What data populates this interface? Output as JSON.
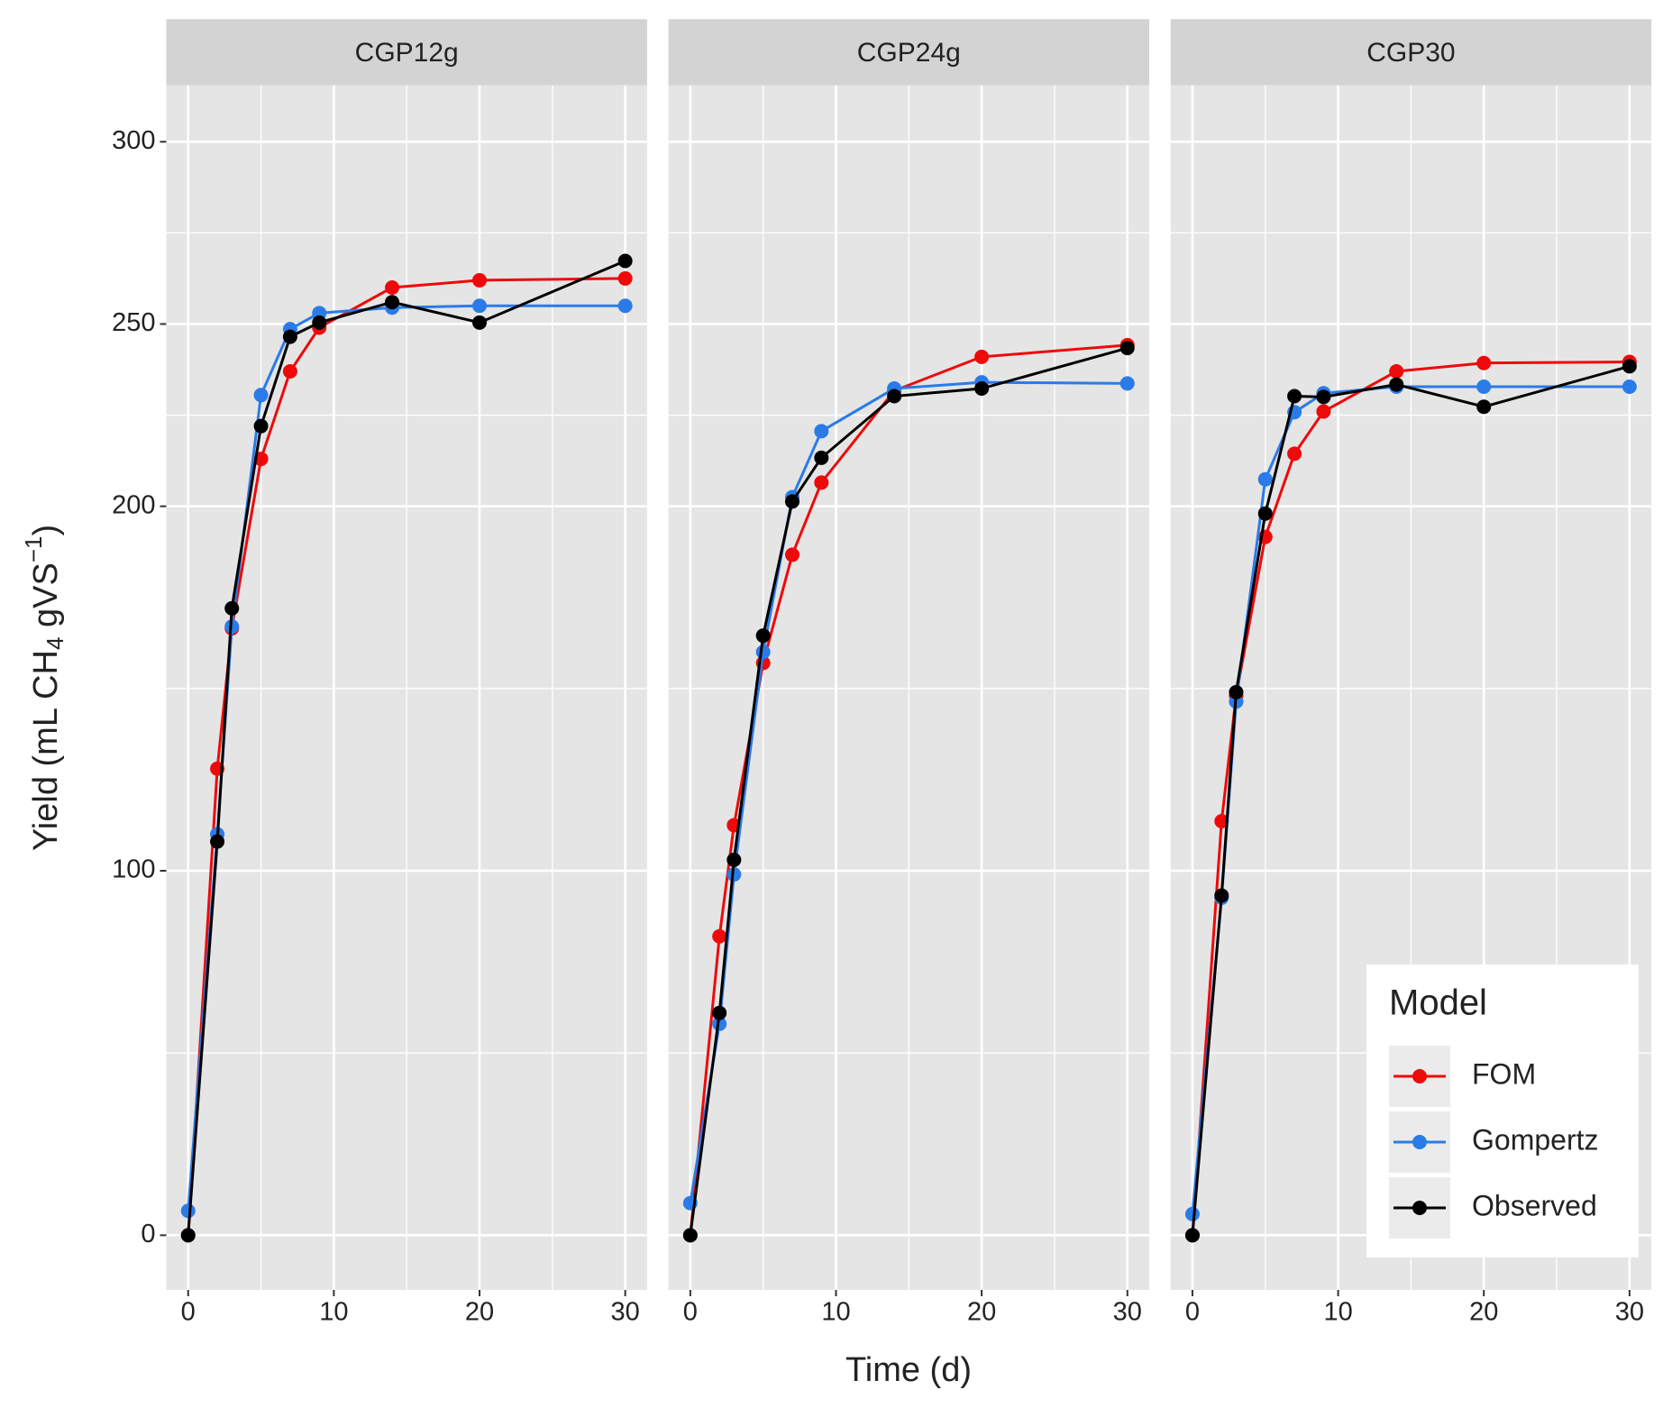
{
  "chart_data": [
    {
      "type": "line",
      "title": "CGP12g",
      "x": [
        0,
        2,
        3,
        5,
        7,
        9,
        14,
        20,
        30
      ],
      "series": [
        {
          "name": "FOM",
          "color": "#ee0a0a",
          "values": [
            0,
            128,
            166.5,
            213,
            237,
            249,
            260,
            262,
            262.5
          ]
        },
        {
          "name": "Gompertz",
          "color": "#2a7be8",
          "values": [
            6.7,
            110,
            167,
            230.5,
            248.6,
            253,
            254.5,
            255,
            255
          ]
        },
        {
          "name": "Observed",
          "color": "#000000",
          "values": [
            0,
            108,
            172,
            222,
            246.5,
            250.4,
            256,
            250.4,
            267.3
          ]
        }
      ],
      "xlim": [
        -1.5,
        31.5
      ],
      "ylim": [
        -15,
        315.5
      ],
      "xticks": [
        0,
        10,
        20,
        30
      ],
      "xminor": [
        5,
        15,
        25
      ],
      "yticks": [
        0,
        100,
        200,
        250,
        300
      ],
      "yminor": [
        50,
        150,
        225,
        275
      ]
    },
    {
      "type": "line",
      "title": "CGP24g",
      "x": [
        0,
        2,
        3,
        5,
        7,
        9,
        14,
        20,
        30
      ],
      "series": [
        {
          "name": "FOM",
          "color": "#ee0a0a",
          "values": [
            0,
            82,
            112.5,
            157,
            186.7,
            206.5,
            231.7,
            241,
            244.2
          ]
        },
        {
          "name": "Gompertz",
          "color": "#2a7be8",
          "values": [
            8.8,
            58,
            99,
            160,
            202.5,
            220.6,
            232.3,
            234,
            233.7
          ]
        },
        {
          "name": "Observed",
          "color": "#000000",
          "values": [
            0,
            61,
            103,
            164.5,
            201.3,
            213.3,
            230.2,
            232.3,
            243.4
          ]
        }
      ],
      "xlim": [
        -1.5,
        31.5
      ],
      "ylim": [
        -15,
        315.5
      ],
      "xticks": [
        0,
        10,
        20,
        30
      ],
      "xminor": [
        5,
        15,
        25
      ],
      "yticks": [
        0,
        100,
        200,
        250,
        300
      ],
      "yminor": [
        50,
        150,
        225,
        275
      ]
    },
    {
      "type": "line",
      "title": "CGP30",
      "x": [
        0,
        2,
        3,
        5,
        7,
        9,
        14,
        20,
        30
      ],
      "series": [
        {
          "name": "FOM",
          "color": "#ee0a0a",
          "values": [
            0,
            113.6,
            148,
            191.6,
            214.4,
            226,
            237,
            239.3,
            239.6
          ]
        },
        {
          "name": "Gompertz",
          "color": "#2a7be8",
          "values": [
            5.8,
            92.6,
            146.4,
            207.4,
            225.8,
            231,
            232.8,
            232.8,
            232.8
          ]
        },
        {
          "name": "Observed",
          "color": "#000000",
          "values": [
            0,
            93.2,
            149,
            198,
            230.2,
            230,
            233.4,
            227.3,
            238.4
          ]
        }
      ],
      "xlim": [
        -1.5,
        31.5
      ],
      "ylim": [
        -15,
        315.5
      ],
      "xticks": [
        0,
        10,
        20,
        30
      ],
      "xminor": [
        5,
        15,
        25
      ],
      "yticks": [
        0,
        100,
        200,
        250,
        300
      ],
      "yminor": [
        50,
        150,
        225,
        275
      ]
    }
  ],
  "x_label": "Time (d)",
  "y_label": [
    "Yield (mL CH",
    "4",
    " gVS",
    "−1",
    ")"
  ],
  "legend": {
    "title": "Model",
    "position": "bottom-right"
  }
}
